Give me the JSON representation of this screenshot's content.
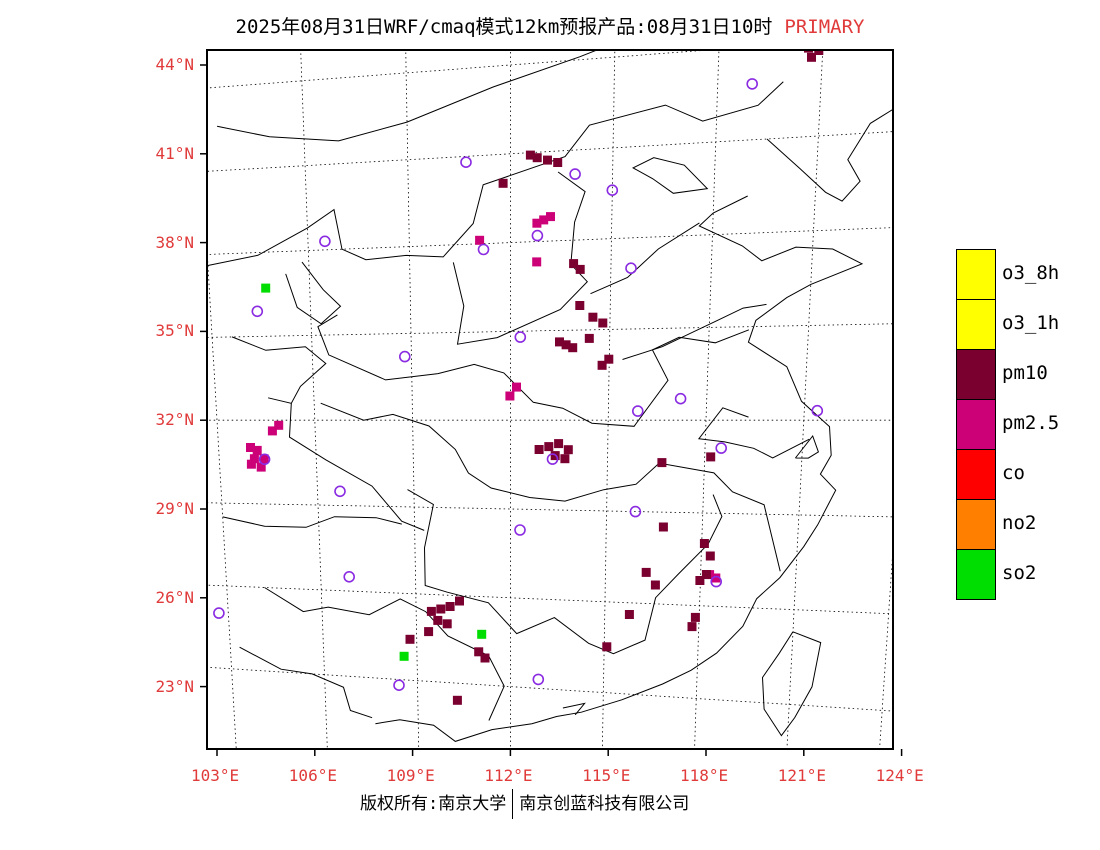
{
  "title": {
    "main": "2025年08月31日WRF/cmaq模式12km预报产品:08月31日10时",
    "tag": "PRIMARY"
  },
  "colors": {
    "o3_8h": "#ffff00",
    "o3_1h": "#ffff00",
    "pm10": "#7a0030",
    "pm25": "#cc0077",
    "co": "#ff0000",
    "no2": "#ff8000",
    "so2": "#00dd00",
    "station": "#8a2be2",
    "label": "#e03a3a"
  },
  "axes": {
    "lat_labels": [
      "44°N",
      "41°N",
      "38°N",
      "35°N",
      "32°N",
      "29°N",
      "26°N",
      "23°N"
    ],
    "lon_labels": [
      "103°E",
      "106°E",
      "109°E",
      "112°E",
      "115°E",
      "118°E",
      "121°E",
      "124°E"
    ]
  },
  "legend": [
    {
      "key": "o3_8h",
      "label": "o3_8h"
    },
    {
      "key": "o3_1h",
      "label": "o3_1h"
    },
    {
      "key": "pm10",
      "label": "pm10"
    },
    {
      "key": "pm25",
      "label": "pm2.5"
    },
    {
      "key": "co",
      "label": "co"
    },
    {
      "key": "no2",
      "label": "no2"
    },
    {
      "key": "so2",
      "label": "so2"
    }
  ],
  "footer": {
    "left": "版权所有:南京大学",
    "right": "南京创蓝科技有限公司"
  },
  "map_data": {
    "stations": [
      [
        119.0,
        42.8
      ],
      [
        110.7,
        40.8
      ],
      [
        113.9,
        40.2
      ],
      [
        115.0,
        39.6
      ],
      [
        106.5,
        38.3
      ],
      [
        112.8,
        38.2
      ],
      [
        111.2,
        37.8
      ],
      [
        115.6,
        37.0
      ],
      [
        104.4,
        35.9
      ],
      [
        112.3,
        34.8
      ],
      [
        108.8,
        34.2
      ],
      [
        117.2,
        32.7
      ],
      [
        115.9,
        32.3
      ],
      [
        121.4,
        32.3
      ],
      [
        104.4,
        30.6
      ],
      [
        113.3,
        30.7
      ],
      [
        118.5,
        31.1
      ],
      [
        106.7,
        29.5
      ],
      [
        115.9,
        29.0
      ],
      [
        112.3,
        28.3
      ],
      [
        118.5,
        26.8
      ],
      [
        106.9,
        26.5
      ],
      [
        102.7,
        25.0
      ],
      [
        108.4,
        22.8
      ],
      [
        112.9,
        23.3
      ]
    ],
    "pm10_cells": [
      [
        120.6,
        43.8
      ],
      [
        120.9,
        43.7
      ],
      [
        120.7,
        43.5
      ],
      [
        112.6,
        40.9
      ],
      [
        112.8,
        40.8
      ],
      [
        113.1,
        40.7
      ],
      [
        113.4,
        40.6
      ],
      [
        111.8,
        40.0
      ],
      [
        113.9,
        37.2
      ],
      [
        114.1,
        37.0
      ],
      [
        114.1,
        35.8
      ],
      [
        114.5,
        35.4
      ],
      [
        114.8,
        35.2
      ],
      [
        114.4,
        34.7
      ],
      [
        113.5,
        34.6
      ],
      [
        113.7,
        34.5
      ],
      [
        113.9,
        34.4
      ],
      [
        115.0,
        34.0
      ],
      [
        114.8,
        33.8
      ],
      [
        112.9,
        31.0
      ],
      [
        113.2,
        31.1
      ],
      [
        113.5,
        31.2
      ],
      [
        113.8,
        31.0
      ],
      [
        113.4,
        30.8
      ],
      [
        113.7,
        30.7
      ],
      [
        116.7,
        30.6
      ],
      [
        118.2,
        30.8
      ],
      [
        116.8,
        28.5
      ],
      [
        118.1,
        28.0
      ],
      [
        118.3,
        27.6
      ],
      [
        118.2,
        27.0
      ],
      [
        118.0,
        26.8
      ],
      [
        117.9,
        25.6
      ],
      [
        117.8,
        25.3
      ],
      [
        116.3,
        27.0
      ],
      [
        116.6,
        26.6
      ],
      [
        109.5,
        25.4
      ],
      [
        109.8,
        25.5
      ],
      [
        110.1,
        25.6
      ],
      [
        110.4,
        25.8
      ],
      [
        109.7,
        25.1
      ],
      [
        110.0,
        25.0
      ],
      [
        108.8,
        24.4
      ],
      [
        109.4,
        24.7
      ],
      [
        111.0,
        24.1
      ],
      [
        111.2,
        23.9
      ],
      [
        110.3,
        22.4
      ],
      [
        115.1,
        24.5
      ],
      [
        115.8,
        25.6
      ]
    ],
    "pm25_cells": [
      [
        112.8,
        38.6
      ],
      [
        113.0,
        38.7
      ],
      [
        113.2,
        38.8
      ],
      [
        111.1,
        38.1
      ],
      [
        112.8,
        37.3
      ],
      [
        104.0,
        31.0
      ],
      [
        104.2,
        30.9
      ],
      [
        104.1,
        30.6
      ],
      [
        104.4,
        30.6
      ],
      [
        104.0,
        30.4
      ],
      [
        104.3,
        30.3
      ],
      [
        104.9,
        31.8
      ],
      [
        104.7,
        31.6
      ],
      [
        118.3,
        27.0
      ],
      [
        118.5,
        26.9
      ],
      [
        112.0,
        32.8
      ],
      [
        112.2,
        33.1
      ]
    ],
    "so2_cells": [
      [
        104.7,
        36.7
      ],
      [
        108.6,
        23.8
      ],
      [
        111.1,
        24.7
      ]
    ],
    "borders": [
      [
        [
          103.5,
          42.6
        ],
        [
          105,
          42.1
        ],
        [
          107,
          41.8
        ],
        [
          109,
          42.3
        ],
        [
          111.5,
          43.3
        ],
        [
          114,
          44.1
        ],
        [
          117,
          45.2
        ],
        [
          118.5,
          44.5
        ]
      ],
      [
        [
          119.5,
          41.0
        ],
        [
          120.5,
          40.0
        ],
        [
          121.3,
          39.2
        ],
        [
          121.8,
          38.9
        ],
        [
          122.3,
          39.5
        ],
        [
          121.9,
          40.2
        ],
        [
          122.5,
          41.3
        ],
        [
          123.3,
          41.8
        ],
        [
          124.3,
          40.5
        ]
      ],
      [
        [
          119.0,
          39.2
        ],
        [
          118.0,
          38.7
        ],
        [
          117.6,
          38.3
        ],
        [
          118.9,
          37.6
        ],
        [
          119.5,
          37.1
        ],
        [
          120.5,
          37.5
        ],
        [
          121.6,
          37.4
        ],
        [
          122.5,
          36.9
        ],
        [
          121.0,
          36.3
        ],
        [
          120.3,
          35.9
        ],
        [
          119.4,
          35.2
        ],
        [
          119.2,
          34.5
        ],
        [
          120.4,
          33.7
        ],
        [
          120.9,
          32.6
        ],
        [
          121.8,
          31.8
        ],
        [
          121.9,
          30.9
        ],
        [
          121.6,
          30.3
        ],
        [
          122.1,
          29.8
        ],
        [
          121.6,
          28.7
        ],
        [
          121.2,
          28.0
        ],
        [
          120.5,
          27.0
        ],
        [
          119.8,
          26.3
        ],
        [
          119.4,
          25.4
        ],
        [
          118.6,
          24.5
        ],
        [
          117.8,
          23.9
        ],
        [
          116.9,
          23.4
        ],
        [
          115.6,
          22.8
        ],
        [
          114.3,
          22.3
        ],
        [
          113.5,
          22.1
        ],
        [
          112.7,
          21.8
        ],
        [
          111.4,
          21.5
        ],
        [
          110.2,
          21.0
        ],
        [
          109.5,
          21.5
        ],
        [
          108.4,
          21.6
        ],
        [
          107.6,
          21.4
        ]
      ],
      [
        [
          121.0,
          25.3
        ],
        [
          121.9,
          25.0
        ],
        [
          121.7,
          23.6
        ],
        [
          121.2,
          22.6
        ],
        [
          120.8,
          22.0
        ],
        [
          120.2,
          22.8
        ],
        [
          120.1,
          23.8
        ],
        [
          120.6,
          24.6
        ],
        [
          121.0,
          25.3
        ]
      ],
      [
        [
          103.0,
          37.6
        ],
        [
          104.5,
          37.9
        ],
        [
          106.0,
          38.8
        ],
        [
          106.8,
          39.4
        ],
        [
          107.0,
          38.0
        ],
        [
          107.7,
          37.6
        ],
        [
          108.9,
          37.7
        ],
        [
          110.0,
          37.6
        ],
        [
          110.9,
          38.7
        ],
        [
          111.2,
          40.0
        ],
        [
          113.6,
          40.8
        ],
        [
          114.3,
          41.8
        ],
        [
          116.5,
          42.3
        ],
        [
          117.6,
          41.7
        ],
        [
          119.2,
          42.1
        ],
        [
          119.9,
          42.8
        ]
      ],
      [
        [
          110.3,
          37.4
        ],
        [
          110.6,
          35.9
        ],
        [
          110.4,
          34.6
        ],
        [
          111.6,
          34.8
        ],
        [
          113.5,
          35.7
        ],
        [
          114.3,
          36.6
        ],
        [
          113.8,
          37.2
        ],
        [
          113.9,
          38.6
        ],
        [
          114.2,
          39.6
        ],
        [
          113.4,
          40.3
        ]
      ],
      [
        [
          106.8,
          35.7
        ],
        [
          106.2,
          35.3
        ],
        [
          106.5,
          34.3
        ],
        [
          108.2,
          33.4
        ],
        [
          109.8,
          33.6
        ],
        [
          110.9,
          33.9
        ],
        [
          111.8,
          33.6
        ],
        [
          112.7,
          32.6
        ],
        [
          113.6,
          32.4
        ],
        [
          114.5,
          31.9
        ],
        [
          115.8,
          31.8
        ],
        [
          116.8,
          33.3
        ],
        [
          116.3,
          34.3
        ],
        [
          117.1,
          34.7
        ],
        [
          118.2,
          34.5
        ],
        [
          119.2,
          34.9
        ]
      ],
      [
        [
          106.2,
          32.6
        ],
        [
          107.5,
          32.0
        ],
        [
          108.4,
          32.2
        ],
        [
          109.5,
          31.8
        ],
        [
          110.3,
          31.0
        ],
        [
          110.7,
          30.2
        ],
        [
          111.4,
          29.7
        ],
        [
          112.6,
          29.4
        ],
        [
          113.7,
          29.3
        ],
        [
          114.9,
          29.7
        ],
        [
          115.9,
          29.9
        ],
        [
          116.6,
          30.6
        ],
        [
          118.3,
          30.3
        ],
        [
          118.9,
          29.7
        ],
        [
          119.9,
          29.3
        ],
        [
          120.5,
          27.2
        ]
      ],
      [
        [
          108.8,
          29.6
        ],
        [
          109.6,
          29.1
        ],
        [
          109.3,
          27.6
        ],
        [
          109.3,
          26.3
        ],
        [
          110.0,
          26.1
        ],
        [
          111.3,
          25.8
        ],
        [
          112.2,
          24.8
        ],
        [
          113.4,
          25.4
        ],
        [
          114.5,
          24.6
        ],
        [
          115.3,
          24.3
        ],
        [
          116.3,
          24.8
        ],
        [
          116.6,
          26.2
        ],
        [
          117.3,
          27.0
        ],
        [
          118.2,
          28.0
        ],
        [
          118.6,
          28.9
        ],
        [
          118.3,
          29.6
        ]
      ],
      [
        [
          105.3,
          32.6
        ],
        [
          105.2,
          31.4
        ],
        [
          106.3,
          30.6
        ],
        [
          107.7,
          29.7
        ],
        [
          108.6,
          28.5
        ],
        [
          109.3,
          28.2
        ]
      ],
      [
        [
          103.0,
          28.5
        ],
        [
          104.3,
          28.2
        ],
        [
          105.6,
          28.2
        ],
        [
          106.5,
          28.6
        ],
        [
          107.8,
          28.6
        ],
        [
          108.6,
          28.4
        ]
      ],
      [
        [
          104.2,
          26.0
        ],
        [
          105.4,
          25.2
        ],
        [
          106.2,
          25.4
        ],
        [
          107.5,
          25.2
        ],
        [
          108.5,
          25.8
        ],
        [
          109.3,
          25.4
        ],
        [
          110.0,
          24.6
        ],
        [
          111.3,
          24.0
        ],
        [
          111.8,
          23.0
        ],
        [
          111.3,
          21.8
        ]
      ],
      [
        [
          103.3,
          23.8
        ],
        [
          104.6,
          23.1
        ],
        [
          105.6,
          23.0
        ],
        [
          106.6,
          22.6
        ],
        [
          106.8,
          21.8
        ],
        [
          107.5,
          21.6
        ]
      ],
      [
        [
          103.6,
          35.0
        ],
        [
          104.6,
          34.5
        ],
        [
          105.8,
          34.6
        ],
        [
          106.4,
          34.0
        ],
        [
          105.6,
          33.2
        ],
        [
          105.3,
          32.6
        ],
        [
          104.6,
          32.8
        ]
      ],
      [
        [
          105.8,
          37.6
        ],
        [
          106.4,
          36.6
        ],
        [
          106.9,
          36.0
        ],
        [
          106.3,
          35.4
        ],
        [
          105.6,
          36.0
        ],
        [
          105.3,
          37.2
        ]
      ],
      [
        [
          115.4,
          34.0
        ],
        [
          116.6,
          34.4
        ],
        [
          118.2,
          35.2
        ],
        [
          119.0,
          35.6
        ],
        [
          119.7,
          35.7
        ]
      ],
      [
        [
          116.2,
          39.9
        ],
        [
          116.8,
          39.4
        ],
        [
          117.8,
          39.5
        ],
        [
          117.1,
          40.3
        ],
        [
          116.2,
          40.6
        ],
        [
          115.6,
          40.3
        ],
        [
          116.2,
          39.9
        ]
      ],
      [
        [
          114.4,
          36.2
        ],
        [
          115.5,
          36.7
        ],
        [
          116.4,
          37.6
        ],
        [
          117.6,
          38.4
        ]
      ],
      [
        [
          119.3,
          32.1
        ],
        [
          118.5,
          32.4
        ],
        [
          117.8,
          31.4
        ],
        [
          118.6,
          31.3
        ],
        [
          119.5,
          31.1
        ],
        [
          120.1,
          30.8
        ],
        [
          121.2,
          31.4
        ]
      ],
      [
        [
          120.8,
          30.8
        ],
        [
          121.2,
          30.8
        ],
        [
          121.5,
          31.0
        ],
        [
          121.3,
          31.5
        ],
        [
          120.8,
          30.8
        ]
      ],
      [
        [
          113.7,
          22.4
        ],
        [
          114.4,
          22.6
        ],
        [
          114.1,
          22.2
        ]
      ],
      [
        [
          108.4,
          19.2
        ],
        [
          109.3,
          18.3
        ],
        [
          110.5,
          18.7
        ],
        [
          111.0,
          19.9
        ],
        [
          110.2,
          20.1
        ],
        [
          108.7,
          19.9
        ],
        [
          108.4,
          19.2
        ]
      ]
    ]
  }
}
